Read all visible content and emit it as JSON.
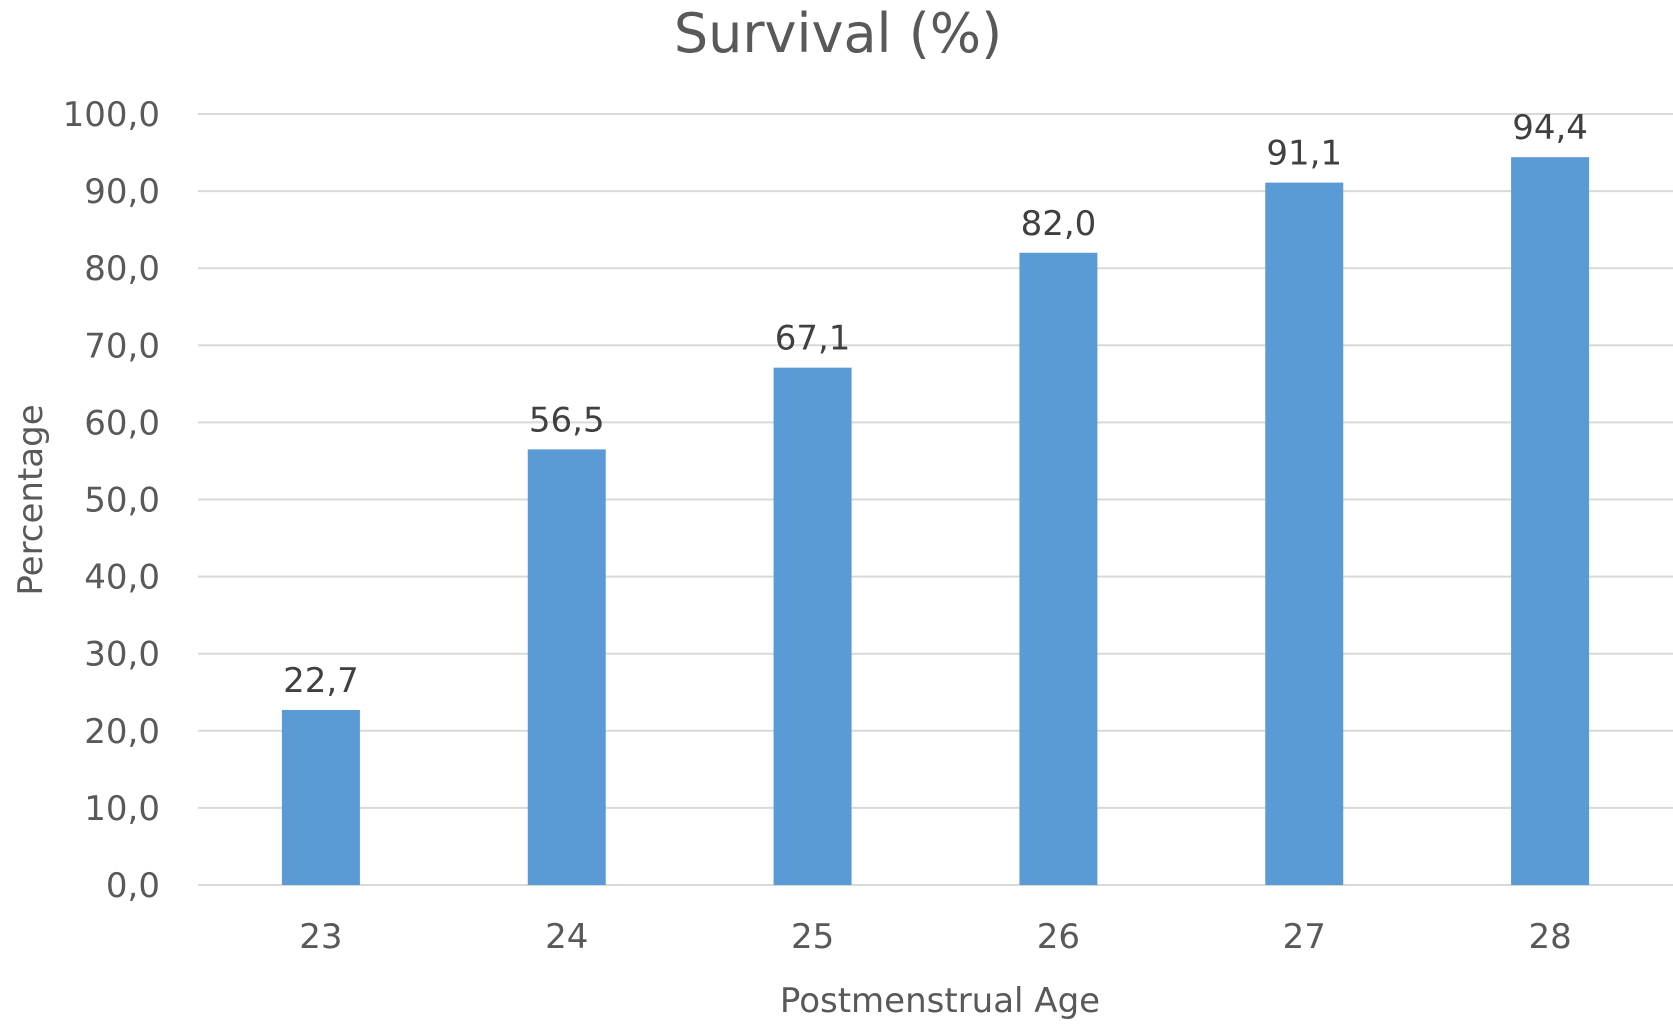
{
  "chart_data": {
    "type": "bar",
    "title": "Survival (%)",
    "xlabel": "Postmenstrual Age",
    "ylabel": "Percentage",
    "categories": [
      "23",
      "24",
      "25",
      "26",
      "27",
      "28"
    ],
    "values": [
      22.7,
      56.5,
      67.1,
      82.0,
      91.1,
      94.4
    ],
    "value_labels": [
      "22,7",
      "56,5",
      "67,1",
      "82,0",
      "91,1",
      "94,4"
    ],
    "ylim": [
      0,
      100
    ],
    "yticks": [
      0,
      10,
      20,
      30,
      40,
      50,
      60,
      70,
      80,
      90,
      100
    ],
    "ytick_labels": [
      "0,0",
      "10,0",
      "20,0",
      "30,0",
      "40,0",
      "50,0",
      "60,0",
      "70,0",
      "80,0",
      "90,0",
      "100,0"
    ],
    "grid": true,
    "legend": "none",
    "bar_color": "#5b9bd5"
  }
}
